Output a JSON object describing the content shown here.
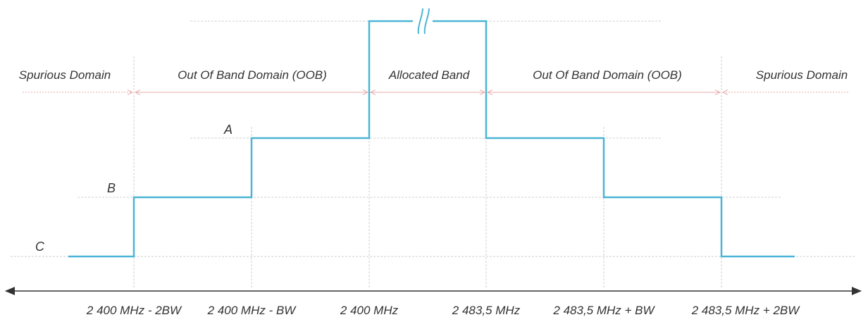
{
  "colors": {
    "mask": "#4ab5d6",
    "guide": "#cfcfcf",
    "arrow": "#e8a8a8",
    "axis": "#333333",
    "text": "#333333"
  },
  "domains": [
    "Spurious Domain",
    "Out Of Band Domain (OOB)",
    "Allocated Band",
    "Out Of Band Domain (OOB)",
    "Spurious Domain"
  ],
  "levels": [
    "A",
    "B",
    "C"
  ],
  "ticks": [
    "2 400 MHz - 2BW",
    "2 400 MHz - BW",
    "2 400 MHz",
    "2 483,5 MHz",
    "2 483,5 MHz + BW",
    "2 483,5 MHz + 2BW"
  ],
  "break_icon": "axis-break-icon"
}
